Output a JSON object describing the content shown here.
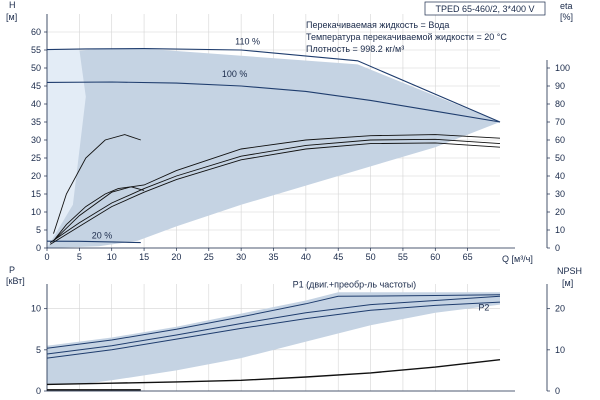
{
  "chart_data": [
    {
      "id": "top",
      "type": "line",
      "title": "TPED 65-460/2, 3*400 V",
      "info": [
        "Перекачиваемая жидкость = Вода",
        "Температура перекачиваемой жидкости = 20 °C",
        "Плотность = 998.2 кг/м³"
      ],
      "colors": {
        "shade": "#c5d3e3",
        "shade_light": "#e3ecf6",
        "curve": "#1f3d6e",
        "grid": "#d4d4d4",
        "axis": "#1a2a4a"
      },
      "xlabel": "Q [м³/ч]",
      "xlim": [
        0,
        70
      ],
      "xticks": [
        0,
        5,
        10,
        15,
        20,
        25,
        30,
        35,
        40,
        45,
        50,
        55,
        60,
        65
      ],
      "y_left": {
        "label_top": "H",
        "label_unit": "[м]",
        "lim": [
          0,
          65
        ],
        "ticks": [
          0,
          5,
          10,
          15,
          20,
          25,
          30,
          35,
          40,
          45,
          50,
          55,
          60
        ]
      },
      "y_right": {
        "label_top": "eta",
        "label_unit": "[%]",
        "lim": [
          0,
          130
        ],
        "ticks": [
          0,
          10,
          20,
          30,
          40,
          50,
          60,
          70,
          80,
          90,
          100
        ]
      },
      "grid": true,
      "region": {
        "upper_x": [
          0,
          6,
          8,
          15,
          48,
          70
        ],
        "upper_y": [
          54,
          55,
          55.2,
          55.4,
          51,
          35
        ],
        "lower_x": [
          70,
          60,
          45,
          30,
          20,
          14,
          8,
          0
        ],
        "lower_y": [
          35,
          28,
          20,
          12,
          6,
          2,
          0.5,
          0
        ]
      },
      "light_region": {
        "x": [
          0,
          5,
          6,
          4,
          0
        ],
        "y": [
          55,
          55,
          42,
          12,
          0
        ]
      },
      "series": [
        {
          "name": "110 %",
          "axis": "left",
          "x": [
            0,
            6,
            15,
            30,
            48,
            70
          ],
          "y": [
            55.1,
            55.3,
            55.4,
            55,
            52,
            35
          ],
          "label_at": [
            31,
            56.5
          ]
        },
        {
          "name": "100 %",
          "axis": "left",
          "x": [
            0,
            10,
            20,
            30,
            40,
            50,
            60,
            70
          ],
          "y": [
            46,
            46.1,
            45.8,
            45,
            43.5,
            41,
            38,
            35
          ],
          "label_at": [
            29,
            47.5
          ]
        },
        {
          "name": "20 %",
          "axis": "left",
          "x": [
            0,
            5,
            10,
            14.5
          ],
          "y": [
            1.9,
            1.85,
            1.7,
            1.5
          ],
          "label_at": [
            8.5,
            2.7
          ]
        },
        {
          "name": "",
          "axis": "left",
          "x": [
            1,
            5,
            10,
            13,
            15,
            20,
            30,
            40,
            50,
            60,
            70
          ],
          "y": [
            2,
            9,
            15.5,
            17,
            17.5,
            21.5,
            27.5,
            30,
            31.2,
            31.5,
            30.5
          ]
        },
        {
          "name": "",
          "axis": "left",
          "x": [
            0.5,
            5,
            10,
            15,
            20,
            30,
            40,
            50,
            60,
            70
          ],
          "y": [
            1.5,
            7,
            12.5,
            16.5,
            20,
            25.5,
            28.5,
            30,
            30.2,
            29
          ]
        },
        {
          "name": "",
          "axis": "left",
          "x": [
            0.5,
            5,
            10,
            15,
            20,
            30,
            40,
            50,
            60,
            70
          ],
          "y": [
            1,
            6,
            11.5,
            15.5,
            19,
            24.5,
            27.5,
            29,
            29.2,
            28
          ]
        },
        {
          "name": "",
          "axis": "right",
          "x": [
            1,
            3,
            6,
            9,
            12,
            14.5
          ],
          "y": [
            8,
            30,
            50,
            60,
            63,
            60
          ]
        },
        {
          "name": "",
          "axis": "left",
          "x": [
            1,
            3,
            6,
            9,
            11,
            13,
            15
          ],
          "y": [
            2,
            6.5,
            11.5,
            15,
            16.5,
            17,
            16
          ]
        }
      ]
    },
    {
      "id": "bottom",
      "type": "line",
      "xlim": [
        0,
        70
      ],
      "colors": {
        "shade": "#c5d3e3",
        "curve": "#1f3d6e",
        "black": "#111111",
        "grid": "#d4d4d4"
      },
      "y_left": {
        "label_top": "P",
        "label_unit": "[кВт]",
        "lim": [
          0,
          13
        ],
        "ticks": [
          0,
          5,
          10
        ]
      },
      "y_right": {
        "label_top": "NPSH",
        "label_unit": "[м]",
        "lim": [
          0,
          26
        ],
        "ticks": [
          0,
          10,
          20
        ]
      },
      "grid": true,
      "region": {
        "upper_x": [
          0,
          10,
          20,
          30,
          40,
          45,
          50,
          60,
          70
        ],
        "upper_y": [
          5.5,
          6.5,
          7.8,
          9.4,
          11,
          12,
          12,
          12,
          12
        ],
        "lower_x": [
          70,
          60,
          50,
          40,
          30,
          20,
          10,
          5,
          0
        ],
        "lower_y": [
          10.5,
          9.5,
          8,
          6,
          4,
          2.5,
          1.3,
          0.8,
          0.8
        ]
      },
      "series": [
        {
          "name": "P1 (двиг.+преобр-ль частоты)",
          "axis": "left",
          "x": [
            0,
            10,
            20,
            30,
            40,
            45,
            60,
            70
          ],
          "y": [
            5.2,
            6.2,
            7.5,
            9,
            10.6,
            11.5,
            11.6,
            11.7
          ],
          "label_at": [
            47.5,
            12.6
          ]
        },
        {
          "name": "",
          "axis": "left",
          "x": [
            0,
            10,
            20,
            30,
            40,
            50,
            60,
            70
          ],
          "y": [
            4.5,
            5.5,
            6.8,
            8.2,
            9.5,
            10.5,
            11,
            11.5
          ]
        },
        {
          "name": "P2",
          "axis": "left",
          "x": [
            0,
            10,
            20,
            30,
            40,
            50,
            60,
            70
          ],
          "y": [
            4,
            5,
            6.3,
            7.6,
            8.8,
            9.8,
            10.4,
            10.8
          ],
          "label_at": [
            67.5,
            9.8
          ]
        },
        {
          "name": "",
          "axis": "left",
          "x": [
            0,
            10,
            20,
            30,
            40,
            50,
            60,
            70
          ],
          "y": [
            0.8,
            0.95,
            1.1,
            1.3,
            1.7,
            2.2,
            2.9,
            3.8
          ],
          "color": "black"
        },
        {
          "name": "",
          "axis": "left",
          "x": [
            0,
            5,
            10,
            14.5
          ],
          "y": [
            0.15,
            0.15,
            0.15,
            0.15
          ],
          "color": "black"
        }
      ]
    }
  ]
}
